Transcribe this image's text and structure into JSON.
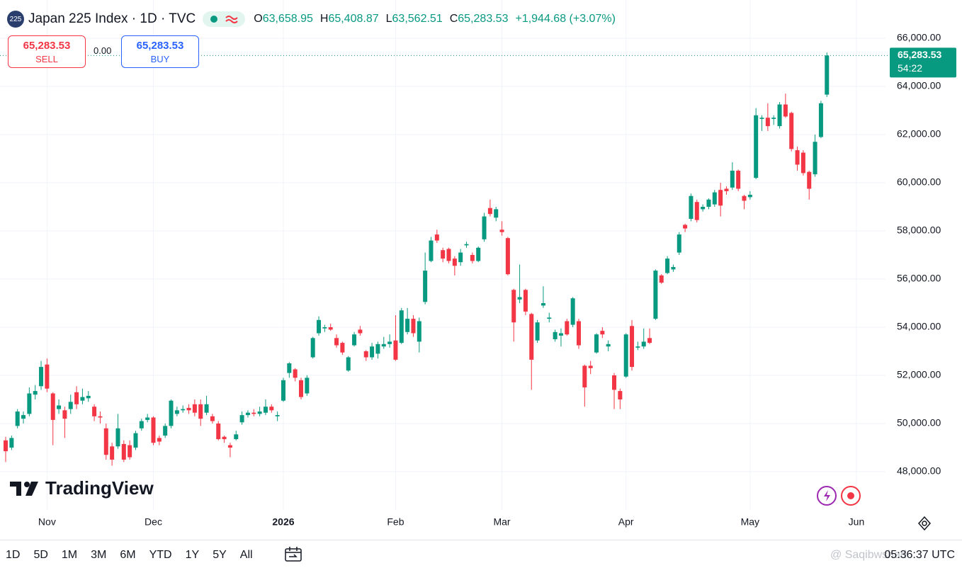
{
  "header": {
    "symbol_badge": "225",
    "title": "Japan 225 Index · 1D · TVC",
    "open_label": "O",
    "open": "63,658.95",
    "high_label": "H",
    "high": "65,408.87",
    "low_label": "L",
    "low": "63,562.51",
    "close_label": "C",
    "close": "65,283.53",
    "change": "+1,944.68 (+3.07%)"
  },
  "trade": {
    "sell_price": "65,283.53",
    "sell": "SELL",
    "spread": "0.00",
    "buy_price": "65,283.53",
    "buy": "BUY"
  },
  "chart_data": {
    "type": "candlestick",
    "up_color": "#089981",
    "down_color": "#f23645",
    "grid": true,
    "categories": [
      null,
      null,
      null,
      null,
      null,
      null,
      null,
      "Nov",
      null,
      null,
      null,
      null,
      null,
      null,
      null,
      null,
      null,
      null,
      null,
      null,
      null,
      null,
      null,
      null,
      null,
      "Dec",
      null,
      null,
      null,
      null,
      null,
      null,
      null,
      null,
      null,
      null,
      null,
      null,
      null,
      null,
      null,
      null,
      null,
      null,
      null,
      null,
      null,
      "2026",
      null,
      null,
      null,
      null,
      null,
      null,
      null,
      null,
      null,
      null,
      null,
      null,
      null,
      null,
      null,
      null,
      null,
      null,
      "Feb",
      null,
      null,
      null,
      null,
      null,
      null,
      null,
      null,
      null,
      null,
      null,
      null,
      null,
      null,
      null,
      null,
      null,
      "Mar",
      null,
      null,
      null,
      null,
      null,
      null,
      null,
      null,
      null,
      null,
      null,
      null,
      null,
      null,
      null,
      null,
      null,
      null,
      null,
      null,
      "Apr",
      null,
      null,
      null,
      null,
      null,
      null,
      null,
      null,
      null,
      null,
      null,
      null,
      null,
      null,
      null,
      null,
      null,
      null,
      null,
      null,
      "May",
      null,
      null,
      null,
      null,
      null,
      null,
      null,
      null,
      null,
      null,
      null,
      null,
      null,
      null,
      null,
      null,
      null,
      "Jun",
      null,
      null,
      null,
      null
    ],
    "open": [
      49300,
      49000,
      49900,
      50200,
      50400,
      51200,
      51550,
      52450,
      51250,
      50600,
      50550,
      50600,
      51300,
      50950,
      51050,
      50700,
      50300,
      49800,
      49050,
      49050,
      49150,
      49100,
      49000,
      49800,
      50150,
      50250,
      49400,
      49500,
      49900,
      50400,
      50550,
      50650,
      50800,
      50800,
      50450,
      50300,
      50000,
      49450,
      49100,
      49350,
      50050,
      50350,
      50450,
      50400,
      50450,
      50700,
      50300,
      50950,
      52100,
      52250,
      51800,
      51250,
      52750,
      53750,
      53950,
      54000,
      53550,
      53350,
      52200,
      53250,
      53900,
      53000,
      52750,
      52900,
      53200,
      53300,
      53450,
      53350,
      53800,
      54350,
      53400,
      55050,
      56750,
      57850,
      57200,
      57250,
      56850,
      56700,
      57400,
      57000,
      56750,
      57650,
      58950,
      58550,
      58050,
      57700,
      55550,
      55150,
      55550,
      54550,
      53450,
      54900,
      54350,
      53500,
      53650,
      54250,
      54100,
      54250,
      52400,
      52400,
      52950,
      53850,
      53200,
      52000,
      51350,
      51950,
      54050,
      53150,
      53200,
      53550,
      54350,
      56150,
      56250,
      56400,
      57100,
      58250,
      58500,
      59200,
      58900,
      59000,
      59100,
      59700,
      59750,
      59800,
      60500,
      59450,
      59400,
      60200,
      62650,
      62700,
      62650,
      62350,
      63250,
      62900,
      61350,
      61250,
      60450,
      60350,
      61900,
      63658.95,
      null,
      null,
      null,
      null,
      null,
      null,
      null,
      null,
      null
    ],
    "high": [
      49450,
      49500,
      50600,
      50500,
      51500,
      51600,
      52600,
      52700,
      51300,
      51000,
      50700,
      51200,
      51550,
      51450,
      51350,
      50800,
      50500,
      50000,
      49200,
      50400,
      49300,
      49300,
      49700,
      50200,
      50400,
      50300,
      49500,
      50000,
      51000,
      50700,
      50750,
      50800,
      51000,
      51000,
      51150,
      50400,
      50100,
      49500,
      49200,
      49700,
      50500,
      50550,
      50600,
      50700,
      51000,
      50800,
      50500,
      51900,
      52550,
      52300,
      51900,
      52000,
      53600,
      54450,
      54100,
      54150,
      53700,
      53400,
      52800,
      53800,
      54050,
      53050,
      53350,
      53400,
      53600,
      53700,
      54500,
      54800,
      54800,
      54500,
      54400,
      57100,
      57750,
      58050,
      57300,
      57300,
      56950,
      57250,
      57550,
      57100,
      57350,
      58750,
      59300,
      59000,
      58400,
      57750,
      55600,
      56600,
      55600,
      54600,
      54300,
      55700,
      54600,
      53900,
      53950,
      54350,
      55250,
      54350,
      52450,
      52600,
      53750,
      54000,
      53450,
      52100,
      51450,
      53750,
      54300,
      53400,
      53950,
      53950,
      56400,
      56200,
      56950,
      56600,
      57950,
      58300,
      59550,
      59300,
      59100,
      59350,
      59700,
      60000,
      59850,
      60850,
      60550,
      59500,
      59650,
      63100,
      62800,
      63300,
      62800,
      63350,
      63700,
      62950,
      61500,
      61350,
      60500,
      62000,
      63400,
      65408.87,
      null,
      null,
      null,
      null,
      null,
      null,
      null,
      null,
      null
    ],
    "low": [
      48400,
      48900,
      49800,
      50000,
      50300,
      51000,
      51400,
      51300,
      49100,
      50400,
      49400,
      50400,
      50600,
      50800,
      50900,
      50100,
      50000,
      48500,
      48250,
      48950,
      48400,
      48500,
      48900,
      49700,
      50050,
      49100,
      49100,
      49400,
      49800,
      50300,
      50450,
      50400,
      50300,
      49900,
      50350,
      50000,
      49300,
      49200,
      48600,
      49300,
      49950,
      50250,
      50300,
      50300,
      50350,
      50450,
      50100,
      50900,
      51900,
      51750,
      51000,
      51150,
      52700,
      53650,
      53800,
      53850,
      53150,
      52850,
      52150,
      53200,
      53650,
      52600,
      52650,
      52700,
      53100,
      53150,
      52600,
      53300,
      53700,
      53600,
      52950,
      54950,
      56700,
      57500,
      56700,
      56650,
      56150,
      56550,
      57300,
      56650,
      56700,
      57550,
      58600,
      58400,
      57800,
      56150,
      53400,
      55000,
      54500,
      51400,
      53350,
      54800,
      54200,
      53400,
      53200,
      53650,
      54000,
      53100,
      50700,
      52050,
      52900,
      53550,
      53000,
      50600,
      50600,
      51900,
      52200,
      53050,
      53100,
      53300,
      54300,
      55800,
      56200,
      56300,
      57000,
      57950,
      58400,
      58350,
      58800,
      58900,
      59000,
      58600,
      59500,
      59700,
      59650,
      58900,
      59300,
      60150,
      62150,
      62150,
      62400,
      62250,
      62700,
      61300,
      60500,
      60300,
      59300,
      60250,
      61850,
      63562.51,
      null,
      null,
      null,
      null,
      null,
      null,
      null,
      null,
      null
    ],
    "close": [
      48850,
      49400,
      50500,
      50350,
      51250,
      51350,
      52350,
      51450,
      50150,
      50750,
      50200,
      50900,
      50800,
      51100,
      51150,
      50300,
      50250,
      48700,
      48500,
      49800,
      48500,
      48600,
      49600,
      50100,
      50250,
      49200,
      49250,
      49900,
      50950,
      50550,
      50600,
      50550,
      50450,
      50200,
      50800,
      50100,
      49350,
      49350,
      49000,
      49550,
      50350,
      50450,
      50400,
      50500,
      50700,
      50550,
      50350,
      51800,
      52500,
      51900,
      51100,
      51900,
      53550,
      54300,
      54000,
      53900,
      53250,
      52950,
      52750,
      53700,
      53750,
      52750,
      53200,
      53300,
      53300,
      53400,
      52650,
      54700,
      54350,
      53750,
      54250,
      56350,
      57600,
      57600,
      56850,
      56750,
      56550,
      57100,
      57450,
      56750,
      57300,
      58600,
      58700,
      58900,
      57950,
      56200,
      54200,
      55250,
      54650,
      52650,
      54200,
      55000,
      54400,
      53800,
      53750,
      53700,
      55200,
      53250,
      51500,
      52300,
      53700,
      53700,
      53300,
      51400,
      51000,
      53700,
      52350,
      53200,
      53400,
      53350,
      56350,
      55850,
      56850,
      56500,
      57850,
      58100,
      59450,
      58450,
      59000,
      59300,
      59600,
      59050,
      59650,
      60500,
      59750,
      59250,
      59500,
      62800,
      62700,
      62350,
      62700,
      63250,
      62750,
      61400,
      60750,
      60400,
      59750,
      61700,
      63300,
      65283.53,
      null,
      null,
      null,
      null,
      null,
      null,
      null,
      null,
      null
    ],
    "ylim": [
      46471,
      67294
    ],
    "yticks": [
      {
        "value": 48000,
        "label": "48,000.00"
      },
      {
        "value": 50000,
        "label": "50,000.00"
      },
      {
        "value": 52000,
        "label": "52,000.00"
      },
      {
        "value": 54000,
        "label": "54,000.00"
      },
      {
        "value": 56000,
        "label": "56,000.00"
      },
      {
        "value": 58000,
        "label": "58,000.00"
      },
      {
        "value": 60000,
        "label": "60,000.00"
      },
      {
        "value": 62000,
        "label": "62,000.00"
      },
      {
        "value": 64000,
        "label": "64,000.00"
      },
      {
        "value": 66000,
        "label": "66,000.00"
      }
    ],
    "price_tag": {
      "price": "65,283.53",
      "countdown": "54:22"
    }
  },
  "branding": {
    "logo": "TradingView",
    "watermark": "@ Saqibwshad"
  },
  "toolbar": {
    "ranges": [
      "1D",
      "5D",
      "1M",
      "3M",
      "6M",
      "YTD",
      "1Y",
      "5Y",
      "All"
    ],
    "clock": "05:36:37 UTC"
  }
}
